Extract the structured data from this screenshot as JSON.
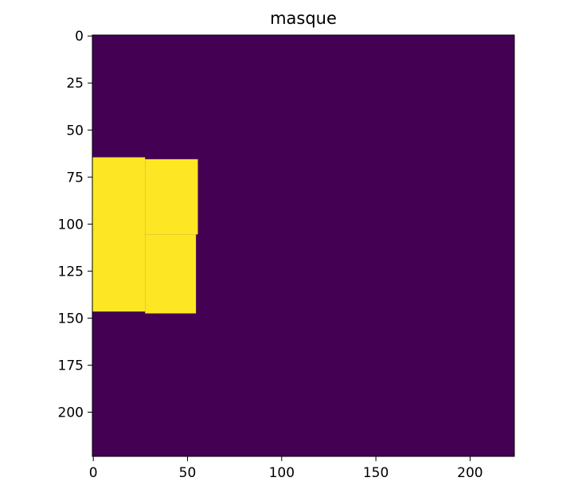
{
  "chart_data": {
    "type": "heatmap",
    "title": "masque",
    "xlabel": "",
    "ylabel": "",
    "image_size": [
      224,
      224
    ],
    "xlim": [
      -0.5,
      223.5
    ],
    "ylim": [
      223.5,
      -0.5
    ],
    "y_axis_inverted": true,
    "x_ticks": [
      0,
      50,
      100,
      150,
      200
    ],
    "x_tick_labels": [
      "0",
      "50",
      "100",
      "150",
      "200"
    ],
    "y_ticks": [
      0,
      25,
      50,
      75,
      100,
      125,
      150,
      175,
      200
    ],
    "y_tick_labels": [
      "0",
      "25",
      "50",
      "75",
      "100",
      "125",
      "150",
      "175",
      "200"
    ],
    "colormap": "viridis",
    "background_value": 0,
    "background_color": "#440154",
    "mask_value": 1,
    "mask_color": "#fde725",
    "mask_regions": [
      {
        "x_range": [
          0,
          28
        ],
        "y_range": [
          65,
          147
        ]
      },
      {
        "x_range": [
          28,
          56
        ],
        "y_range": [
          66,
          106
        ]
      },
      {
        "x_range": [
          28,
          55
        ],
        "y_range": [
          106,
          148
        ]
      }
    ],
    "grid": false,
    "legend": "none"
  }
}
